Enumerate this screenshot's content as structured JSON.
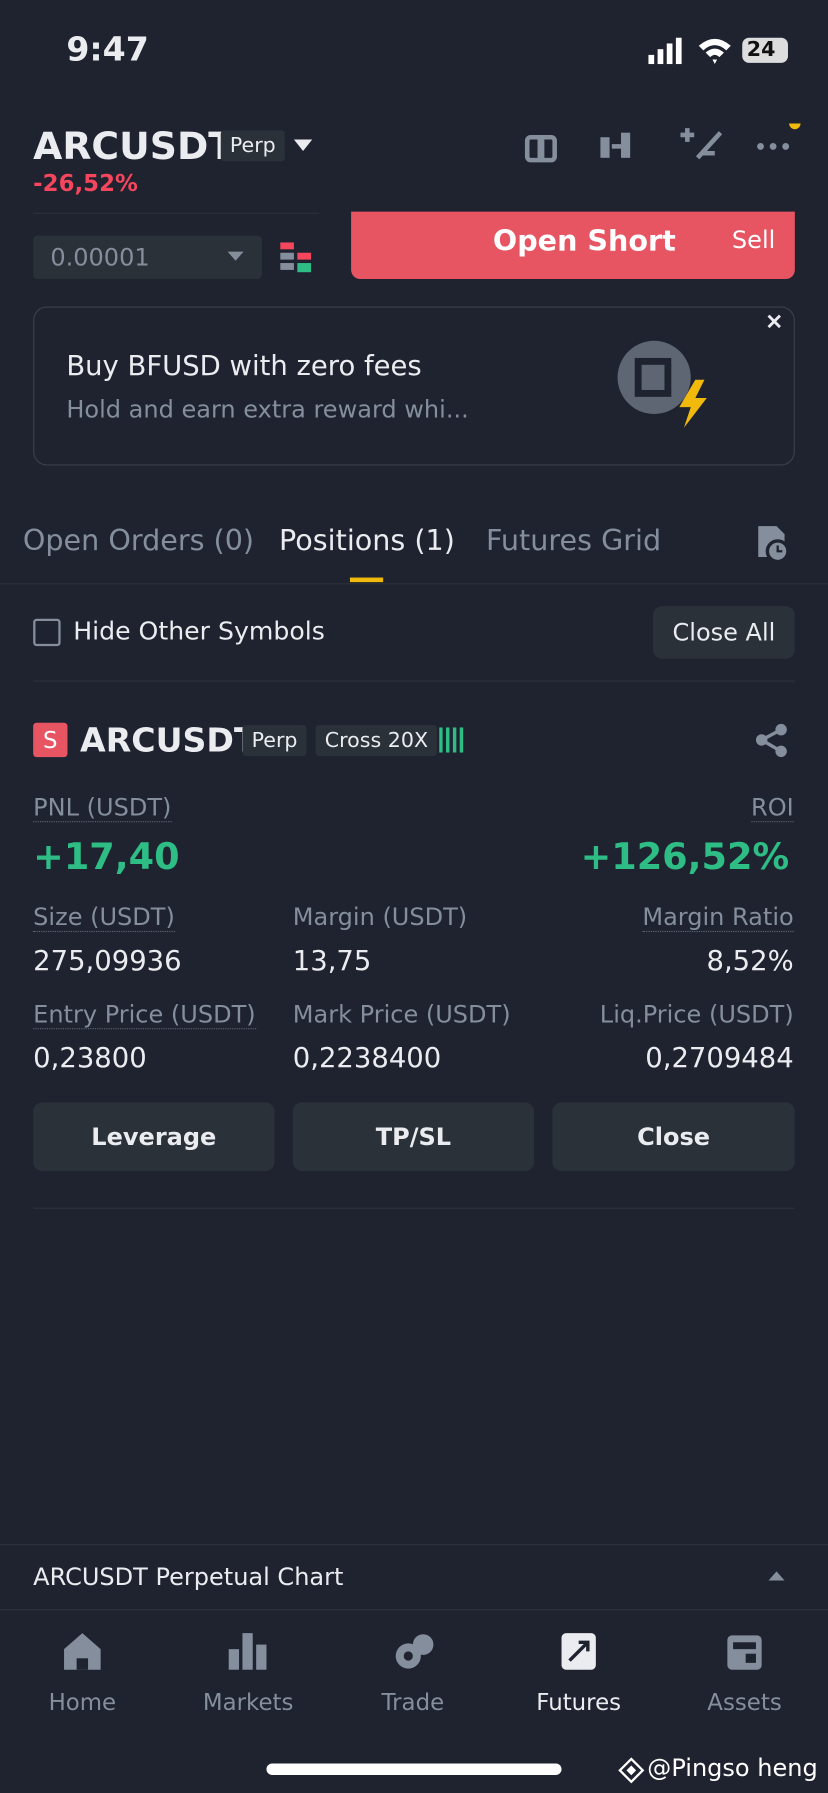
{
  "status_bar": {
    "time": "9:47",
    "battery": "24"
  },
  "header": {
    "symbol": "ARCUSDT",
    "badge": "Perp",
    "change": "-26,52%"
  },
  "order": {
    "price_step": "0.00001",
    "button": "Open Short",
    "button_side": "Sell"
  },
  "promo": {
    "title": "Buy BFUSD with zero fees",
    "subtitle": "Hold and earn extra reward whi..."
  },
  "tabs": [
    "Open Orders (0)",
    "Positions (1)",
    "Futures Grid"
  ],
  "filter": {
    "label": "Hide Other Symbols",
    "close_all": "Close All"
  },
  "position": {
    "side": "S",
    "symbol": "ARCUSDT",
    "badges": [
      "Perp",
      "Cross 20X"
    ],
    "pnl_label": "PNL (USDT)",
    "pnl": "+17,40",
    "roi_label": "ROI",
    "roi": "+126,52%",
    "fields": [
      {
        "label": "Size (USDT)",
        "value": "275,09936"
      },
      {
        "label": "Margin (USDT)",
        "value": "13,75"
      },
      {
        "label": "Margin Ratio",
        "value": "8,52%"
      },
      {
        "label": "Entry Price (USDT)",
        "value": "0,23800"
      },
      {
        "label": "Mark Price (USDT)",
        "value": "0,2238400"
      },
      {
        "label": "Liq.Price (USDT)",
        "value": "0,2709484"
      }
    ],
    "actions": [
      "Leverage",
      "TP/SL",
      "Close"
    ]
  },
  "chart_bar": {
    "label": "ARCUSDT Perpetual  Chart"
  },
  "nav": [
    "Home",
    "Markets",
    "Trade",
    "Futures",
    "Assets"
  ],
  "watermark": "@Pingso  heng"
}
